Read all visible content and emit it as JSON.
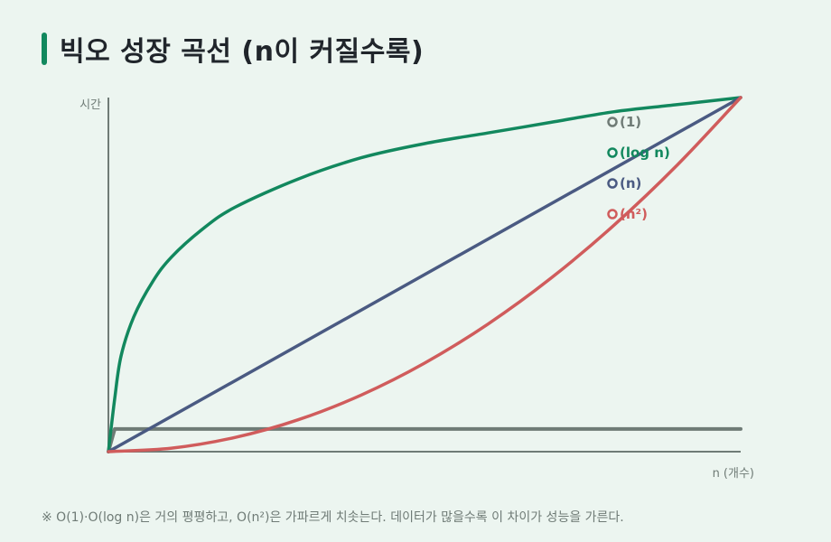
{
  "title": "빅오 성장 곡선 (n이 커질수록)",
  "footnote": "※ O(1)·O(log n)은 거의 평평하고, O(n²)은 가파르게 치솟는다. 데이터가 많을수록 이 차이가 성능을 가른다.",
  "colors": {
    "background": "#ecf5f0",
    "accent": "#12885e",
    "axis": "#6f7b76"
  },
  "chart_data": {
    "type": "line",
    "xlabel": "n (개수)",
    "ylabel": "시간",
    "xlim": [
      0,
      1
    ],
    "ylim": [
      0,
      1
    ],
    "grid": false,
    "legend_position": "top-right",
    "series": [
      {
        "name": "O(1)",
        "color": "#6f7b76",
        "x": [
          0,
          0.01,
          1
        ],
        "y": [
          0,
          0.064,
          0.064
        ]
      },
      {
        "name": "O(log n)",
        "color": "#12885e",
        "x": [
          0,
          0.01,
          0.02,
          0.04,
          0.07,
          0.1,
          0.15,
          0.2,
          0.3,
          0.4,
          0.5,
          0.6,
          0.7,
          0.8,
          0.9,
          1
        ],
        "y": [
          0,
          0.15,
          0.27,
          0.38,
          0.48,
          0.55,
          0.63,
          0.69,
          0.77,
          0.83,
          0.87,
          0.9,
          0.93,
          0.96,
          0.98,
          1
        ]
      },
      {
        "name": "O(n)",
        "color": "#4a5a82",
        "x": [
          0,
          1
        ],
        "y": [
          0,
          1
        ]
      },
      {
        "name": "O(n²)",
        "color": "#d05c5c",
        "x": [
          0,
          0.1,
          0.2,
          0.3,
          0.4,
          0.5,
          0.6,
          0.7,
          0.8,
          0.9,
          1
        ],
        "y": [
          0,
          0.01,
          0.04,
          0.09,
          0.16,
          0.25,
          0.36,
          0.49,
          0.64,
          0.81,
          1
        ]
      }
    ]
  }
}
